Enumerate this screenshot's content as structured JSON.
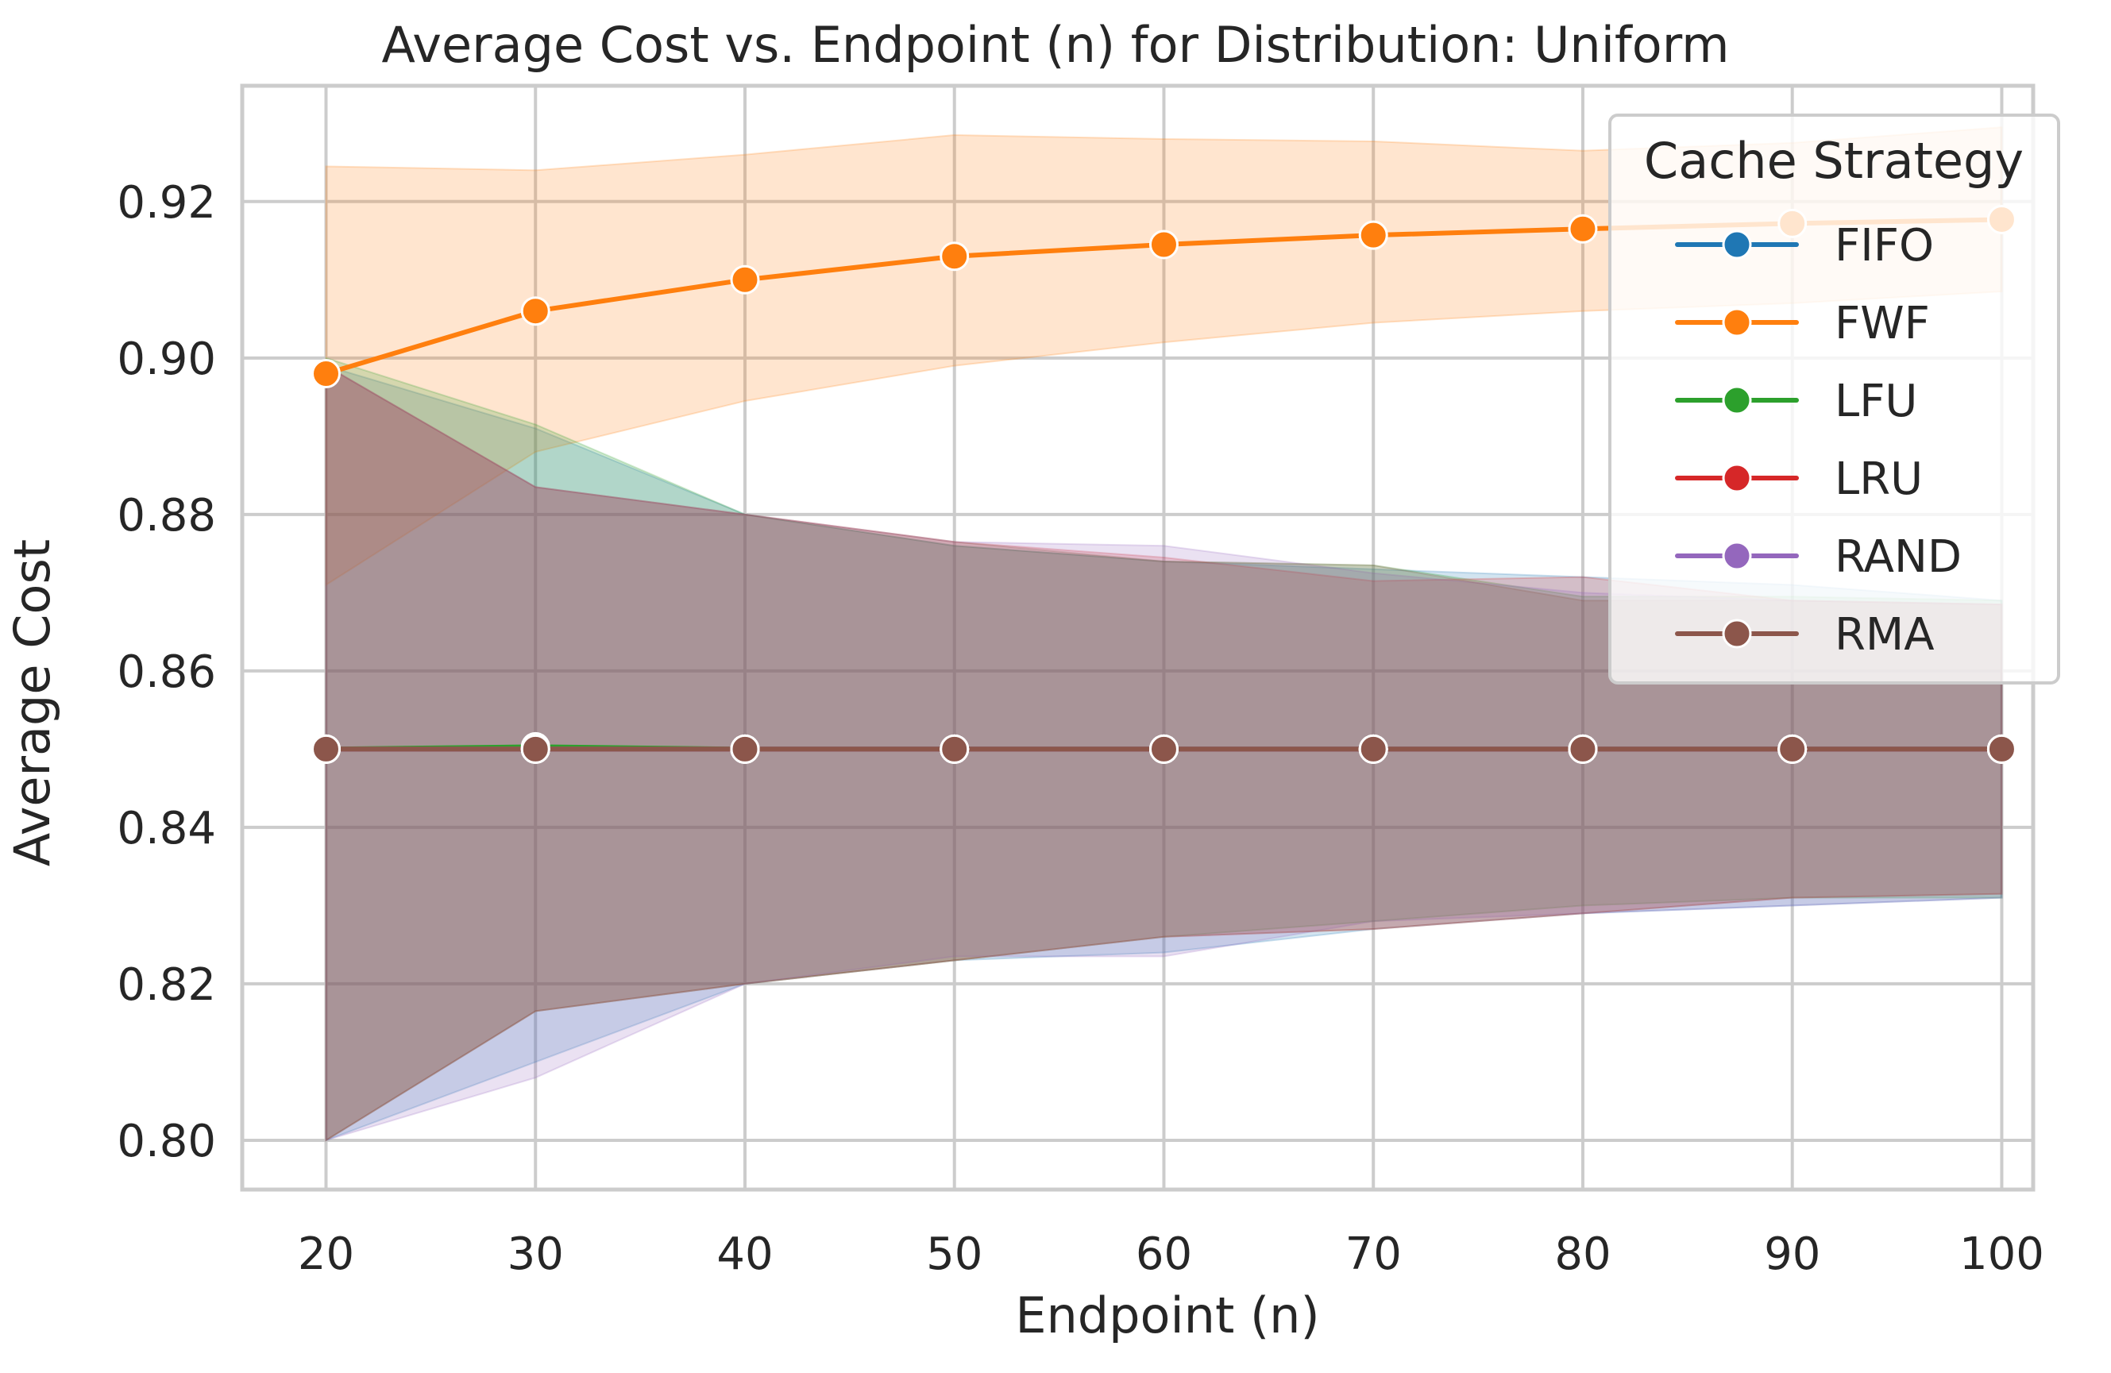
{
  "chart_data": {
    "type": "line",
    "title": "Average Cost vs. Endpoint (n) for Distribution: Uniform",
    "xlabel": "Endpoint (n)",
    "ylabel": "Average Cost",
    "x": [
      20,
      30,
      40,
      50,
      60,
      70,
      80,
      90,
      100
    ],
    "x_ticks": [
      "20",
      "30",
      "40",
      "50",
      "60",
      "70",
      "80",
      "90",
      "100"
    ],
    "y_ticks": [
      "0.80",
      "0.82",
      "0.84",
      "0.86",
      "0.88",
      "0.90",
      "0.92"
    ],
    "xlim": [
      16,
      101.5
    ],
    "ylim": [
      0.7937,
      0.9348
    ],
    "grid": true,
    "legend": {
      "title": "Cache Strategy",
      "position": "top-right"
    },
    "series": [
      {
        "name": "FIFO",
        "color": "#1f77b4",
        "values": [
          0.85,
          0.85,
          0.85,
          0.85,
          0.85,
          0.85,
          0.85,
          0.85,
          0.85
        ],
        "ci_upper": [
          0.899,
          0.891,
          0.88,
          0.876,
          0.874,
          0.873,
          0.872,
          0.871,
          0.869
        ],
        "ci_lower": [
          0.8,
          0.81,
          0.82,
          0.823,
          0.824,
          0.827,
          0.829,
          0.83,
          0.831
        ]
      },
      {
        "name": "FWF",
        "color": "#ff7f0e",
        "values": [
          0.898,
          0.906,
          0.91,
          0.913,
          0.9145,
          0.9157,
          0.9165,
          0.9172,
          0.9177
        ],
        "ci_upper": [
          0.9245,
          0.924,
          0.926,
          0.9285,
          0.928,
          0.9277,
          0.9265,
          0.9275,
          0.9295
        ],
        "ci_lower": [
          0.871,
          0.888,
          0.8945,
          0.899,
          0.902,
          0.9045,
          0.906,
          0.907,
          0.9085
        ]
      },
      {
        "name": "LFU",
        "color": "#2ca02c",
        "values": [
          0.85,
          0.8503,
          0.85,
          0.85,
          0.85,
          0.85,
          0.85,
          0.85,
          0.85
        ],
        "ci_upper": [
          0.9,
          0.8915,
          0.88,
          0.876,
          0.874,
          0.8735,
          0.8695,
          0.8695,
          0.869
        ],
        "ci_lower": [
          0.8,
          0.8165,
          0.82,
          0.823,
          0.826,
          0.828,
          0.83,
          0.831,
          0.831
        ]
      },
      {
        "name": "LRU",
        "color": "#d62728",
        "values": [
          0.85,
          0.85,
          0.85,
          0.85,
          0.85,
          0.85,
          0.85,
          0.85,
          0.85
        ],
        "ci_upper": [
          0.899,
          0.8835,
          0.88,
          0.8765,
          0.8745,
          0.8715,
          0.872,
          0.869,
          0.8685
        ],
        "ci_lower": [
          0.8,
          0.8165,
          0.82,
          0.823,
          0.826,
          0.827,
          0.829,
          0.831,
          0.8315
        ]
      },
      {
        "name": "RAND",
        "color": "#9467bd",
        "values": [
          0.85,
          0.85,
          0.85,
          0.85,
          0.85,
          0.85,
          0.85,
          0.85,
          0.85
        ],
        "ci_upper": [
          0.899,
          0.8835,
          0.88,
          0.8765,
          0.876,
          0.8725,
          0.87,
          0.869,
          0.8685
        ],
        "ci_lower": [
          0.8,
          0.808,
          0.82,
          0.8235,
          0.8235,
          0.828,
          0.829,
          0.83,
          0.831
        ]
      },
      {
        "name": "RMA",
        "color": "#8c564b",
        "values": [
          0.85,
          0.85,
          0.85,
          0.85,
          0.85,
          0.85,
          0.85,
          0.85,
          0.85
        ],
        "ci_upper": [
          0.899,
          0.8835,
          0.88,
          0.8765,
          0.874,
          0.8735,
          0.869,
          0.869,
          0.8685
        ],
        "ci_lower": [
          0.8,
          0.8165,
          0.82,
          0.823,
          0.826,
          0.827,
          0.829,
          0.831,
          0.8315
        ]
      }
    ]
  }
}
